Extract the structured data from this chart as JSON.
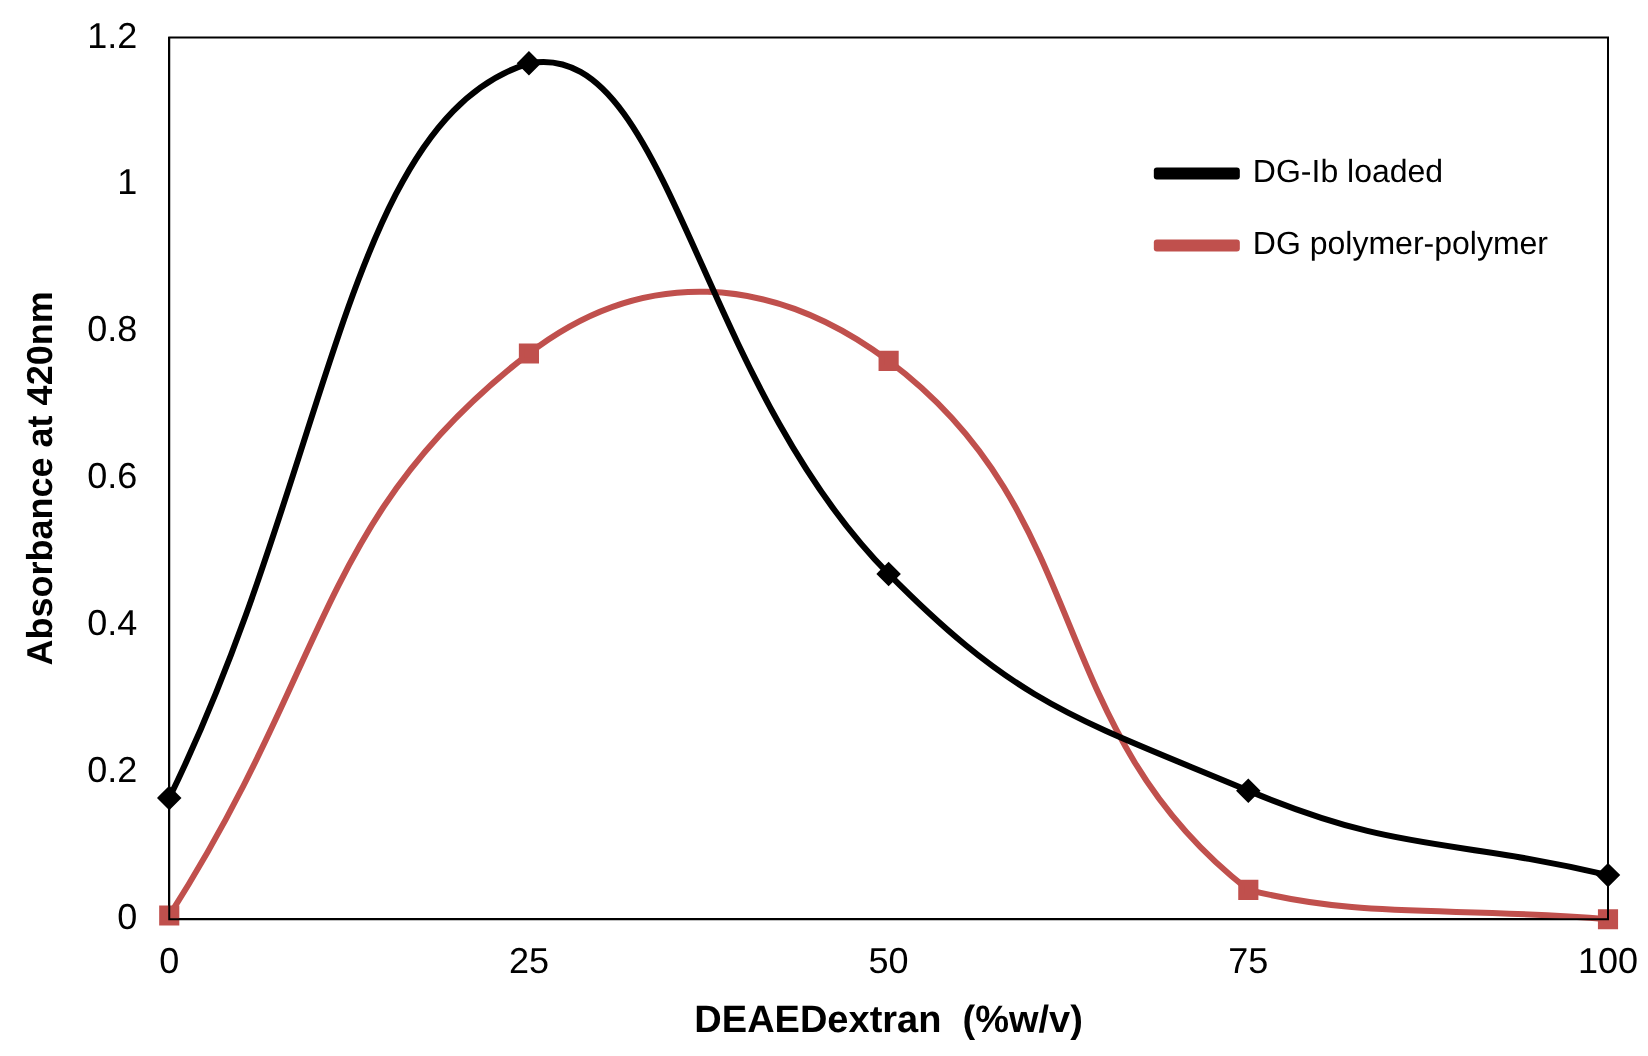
{
  "chart_data": {
    "type": "line",
    "xlabel": "DEAEDextran  (%w/v)",
    "ylabel": "Absorbance at 420nm",
    "x": [
      0,
      25,
      50,
      75,
      100
    ],
    "series": [
      {
        "name": "DG-Ib loaded",
        "color": "#000000",
        "marker": "diamond",
        "values": [
          0.165,
          1.165,
          0.47,
          0.175,
          0.06
        ]
      },
      {
        "name": "DG polymer-polymer",
        "color": "#c0504d",
        "marker": "square",
        "values": [
          0.005,
          0.77,
          0.76,
          0.04,
          0.0
        ]
      }
    ],
    "xlim": [
      0,
      100
    ],
    "xticks": [
      0,
      25,
      50,
      75,
      100
    ],
    "ylim": [
      0,
      1.2
    ],
    "yticks": [
      0,
      0.2,
      0.4,
      0.6,
      0.8,
      1,
      1.2
    ],
    "grid": false,
    "legend": "top right",
    "line_style": "solid"
  }
}
